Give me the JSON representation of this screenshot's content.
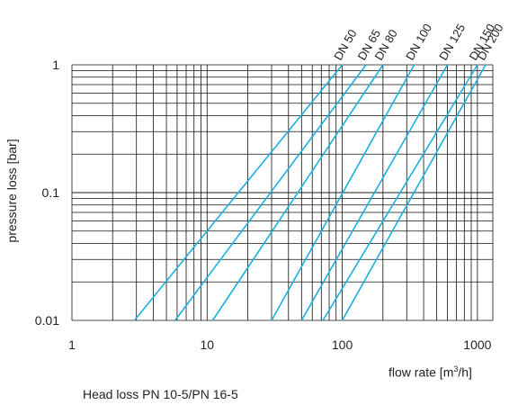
{
  "chart_data": {
    "type": "line",
    "caption": "Head loss PN 10-5/PN 16-5",
    "xlabel_main": "flow rate [m",
    "xlabel_sup": "3",
    "xlabel_tail": "/h]",
    "ylabel": "pressure loss [bar]",
    "x_scale": "log",
    "y_scale": "log",
    "xlim": [
      1,
      1300
    ],
    "ylim": [
      0.01,
      1
    ],
    "x_ticks": [
      {
        "value": 1,
        "label": "1"
      },
      {
        "value": 10,
        "label": "10"
      },
      {
        "value": 100,
        "label": "100"
      },
      {
        "value": 1000,
        "label": "1000"
      }
    ],
    "y_ticks": [
      {
        "value": 0.01,
        "label": "0.01"
      },
      {
        "value": 0.1,
        "label": "0.1"
      },
      {
        "value": 1,
        "label": "1"
      }
    ],
    "grid": true,
    "line_color": "#1bb0e0",
    "series": [
      {
        "name": "DN 50",
        "points": [
          [
            2.9,
            0.01
          ],
          [
            100,
            1
          ]
        ]
      },
      {
        "name": "DN 65",
        "points": [
          [
            5.8,
            0.01
          ],
          [
            150,
            1
          ]
        ]
      },
      {
        "name": "DN 80",
        "points": [
          [
            11,
            0.01
          ],
          [
            200,
            1
          ]
        ]
      },
      {
        "name": "DN 100",
        "points": [
          [
            30,
            0.01
          ],
          [
            340,
            1
          ]
        ]
      },
      {
        "name": "DN 125",
        "points": [
          [
            50,
            0.01
          ],
          [
            600,
            1
          ]
        ]
      },
      {
        "name": "DN 150",
        "points": [
          [
            72,
            0.01
          ],
          [
            1000,
            1
          ]
        ]
      },
      {
        "name": "DN 200",
        "points": [
          [
            100,
            0.01
          ],
          [
            1150,
            1
          ]
        ]
      }
    ]
  }
}
